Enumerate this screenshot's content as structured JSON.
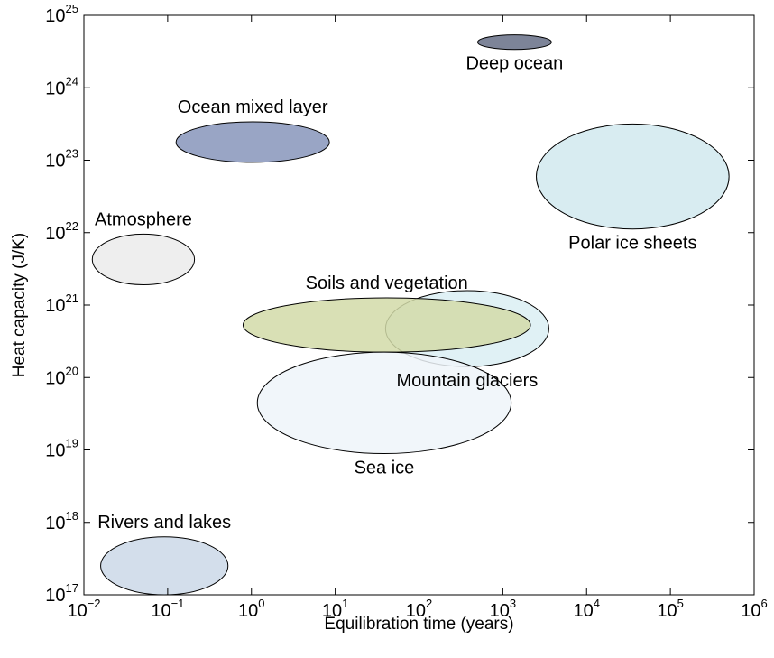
{
  "chart_data": {
    "type": "scatter",
    "title": "",
    "xlabel": "Equilibration time (years)",
    "ylabel": "Heat capacity (J/K)",
    "x_scale": "log",
    "y_scale": "log",
    "xlim_log10": [
      -2,
      6
    ],
    "ylim_log10": [
      17,
      25
    ],
    "x_ticks_log10": [
      -2,
      -1,
      0,
      1,
      2,
      3,
      4,
      5,
      6
    ],
    "y_ticks_log10": [
      17,
      18,
      19,
      20,
      21,
      22,
      23,
      24,
      25
    ],
    "tick_base": "10",
    "grid": false,
    "legend": "none",
    "components": [
      {
        "name": "Deep ocean",
        "log10_time": [
          2.7,
          3.58
        ],
        "log10_heat": [
          24.53,
          24.73
        ],
        "color": "#666f86",
        "label_pos": "below"
      },
      {
        "name": "Ocean mixed layer",
        "log10_time": [
          -0.9,
          0.93
        ],
        "log10_heat": [
          22.97,
          23.53
        ],
        "color": "#8795bb",
        "label_pos": "above"
      },
      {
        "name": "Polar ice sheets",
        "log10_time": [
          3.4,
          5.7
        ],
        "log10_heat": [
          22.05,
          23.5
        ],
        "color": "#d1e9ef",
        "label_pos": "below"
      },
      {
        "name": "Atmosphere",
        "log10_time": [
          -1.9,
          -0.68
        ],
        "log10_heat": [
          21.28,
          21.98
        ],
        "color": "#ebebeb",
        "label_pos": "above"
      },
      {
        "name": "Mountain glaciers",
        "log10_time": [
          1.6,
          3.55
        ],
        "log10_heat": [
          20.15,
          21.2
        ],
        "color": "#daeef3",
        "label_pos": "below"
      },
      {
        "name": "Soils and vegetation",
        "log10_time": [
          -0.1,
          3.33
        ],
        "log10_heat": [
          20.35,
          21.1
        ],
        "color": "#d2dba8",
        "label_pos": "above"
      },
      {
        "name": "Sea ice",
        "log10_time": [
          0.07,
          3.1
        ],
        "log10_heat": [
          18.95,
          20.35
        ],
        "color": "#eef5f9",
        "label_pos": "below"
      },
      {
        "name": "Rivers and lakes",
        "log10_time": [
          -1.8,
          -0.28
        ],
        "log10_heat": [
          17.0,
          17.8
        ],
        "color": "#cbd8e8",
        "label_pos": "above"
      }
    ]
  }
}
